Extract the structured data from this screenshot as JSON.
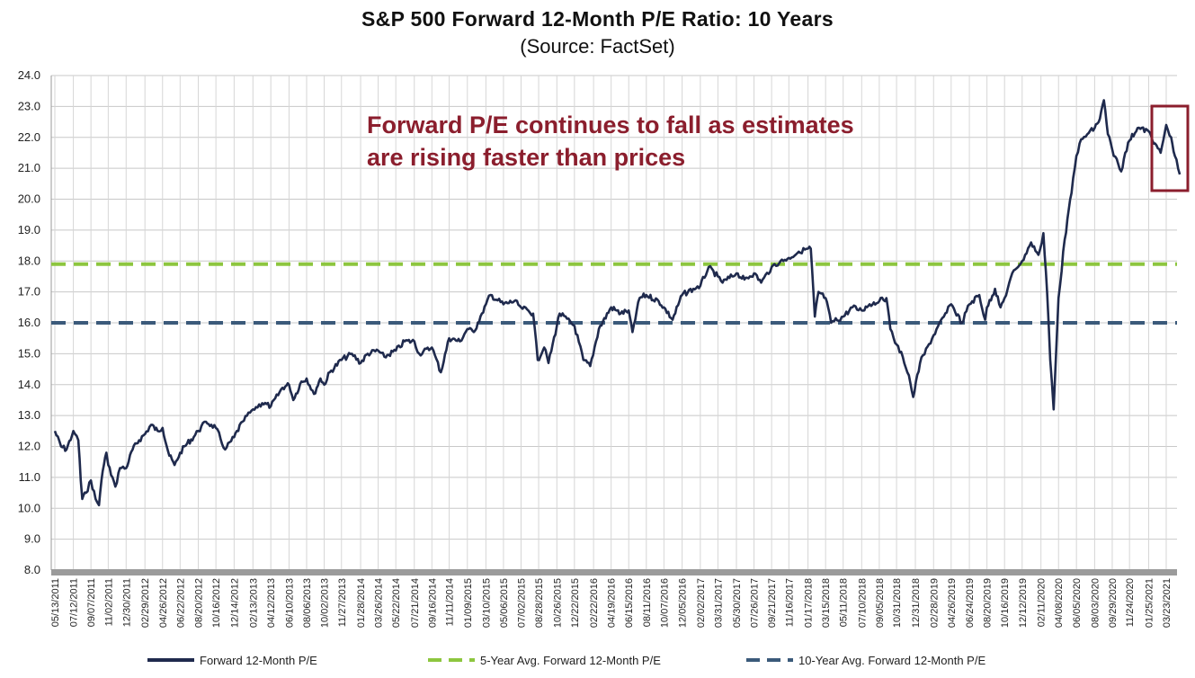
{
  "chart_data": {
    "type": "line",
    "title": "S&P 500 Forward 12-Month P/E Ratio: 10 Years",
    "subtitle": "(Source: FactSet)",
    "ylim": [
      8.0,
      24.0
    ],
    "yticks": [
      "8.0",
      "9.0",
      "10.0",
      "11.0",
      "12.0",
      "13.0",
      "14.0",
      "15.0",
      "16.0",
      "17.0",
      "18.0",
      "19.0",
      "20.0",
      "21.0",
      "22.0",
      "23.0",
      "24.0"
    ],
    "xtick_labels": [
      "05/13/2011",
      "07/12/2011",
      "09/07/2011",
      "11/02/2011",
      "12/30/2011",
      "02/29/2012",
      "04/26/2012",
      "06/22/2012",
      "08/20/2012",
      "10/16/2012",
      "12/14/2012",
      "02/13/2013",
      "04/12/2013",
      "06/10/2013",
      "08/06/2013",
      "10/02/2013",
      "11/27/2013",
      "01/28/2014",
      "03/26/2014",
      "05/22/2014",
      "07/21/2014",
      "09/16/2014",
      "11/11/2014",
      "01/09/2015",
      "03/10/2015",
      "05/06/2015",
      "07/02/2015",
      "08/28/2015",
      "10/26/2015",
      "12/22/2015",
      "02/22/2016",
      "04/19/2016",
      "06/15/2016",
      "08/11/2016",
      "10/07/2016",
      "12/05/2016",
      "02/02/2017",
      "03/31/2017",
      "05/30/2017",
      "07/26/2017",
      "09/21/2017",
      "11/16/2017",
      "01/17/2018",
      "03/15/2018",
      "05/11/2018",
      "07/10/2018",
      "09/05/2018",
      "10/31/2018",
      "12/31/2018",
      "02/28/2019",
      "04/26/2019",
      "06/24/2019",
      "08/20/2019",
      "10/16/2019",
      "12/12/2019",
      "02/11/2020",
      "04/08/2020",
      "06/05/2020",
      "08/03/2020",
      "09/29/2020",
      "11/24/2020",
      "01/25/2021",
      "03/23/2021"
    ],
    "series": [
      {
        "name": "Forward 12-Month P/E",
        "color": "#1f2a4d",
        "style": "solid",
        "points": [
          [
            "05/13/2011",
            12.5
          ],
          [
            "06/02/2011",
            12.0
          ],
          [
            "06/20/2011",
            11.9
          ],
          [
            "07/12/2011",
            12.5
          ],
          [
            "07/28/2011",
            12.2
          ],
          [
            "08/05/2011",
            10.9
          ],
          [
            "08/10/2011",
            10.3
          ],
          [
            "08/22/2011",
            10.5
          ],
          [
            "09/07/2011",
            10.9
          ],
          [
            "09/22/2011",
            10.3
          ],
          [
            "10/03/2011",
            10.1
          ],
          [
            "10/15/2011",
            11.2
          ],
          [
            "10/27/2011",
            11.8
          ],
          [
            "11/02/2011",
            11.4
          ],
          [
            "11/25/2011",
            10.7
          ],
          [
            "12/10/2011",
            11.3
          ],
          [
            "12/30/2011",
            11.3
          ],
          [
            "01/20/2012",
            11.9
          ],
          [
            "02/10/2012",
            12.2
          ],
          [
            "02/29/2012",
            12.4
          ],
          [
            "03/20/2012",
            12.7
          ],
          [
            "04/10/2012",
            12.5
          ],
          [
            "04/26/2012",
            12.6
          ],
          [
            "05/18/2012",
            11.7
          ],
          [
            "06/04/2012",
            11.4
          ],
          [
            "06/22/2012",
            11.8
          ],
          [
            "07/15/2012",
            12.1
          ],
          [
            "08/05/2012",
            12.3
          ],
          [
            "08/20/2012",
            12.5
          ],
          [
            "09/14/2012",
            12.8
          ],
          [
            "10/01/2012",
            12.7
          ],
          [
            "10/16/2012",
            12.6
          ],
          [
            "11/15/2012",
            11.9
          ],
          [
            "12/14/2012",
            12.3
          ],
          [
            "01/10/2013",
            12.8
          ],
          [
            "02/13/2013",
            13.2
          ],
          [
            "03/15/2013",
            13.4
          ],
          [
            "04/12/2013",
            13.3
          ],
          [
            "05/20/2013",
            13.9
          ],
          [
            "06/10/2013",
            14.0
          ],
          [
            "06/24/2013",
            13.5
          ],
          [
            "07/20/2013",
            14.1
          ],
          [
            "08/06/2013",
            14.2
          ],
          [
            "08/30/2013",
            13.7
          ],
          [
            "09/20/2013",
            14.2
          ],
          [
            "10/02/2013",
            14.0
          ],
          [
            "10/20/2013",
            14.4
          ],
          [
            "11/27/2013",
            14.8
          ],
          [
            "12/31/2013",
            15.0
          ],
          [
            "01/28/2014",
            14.7
          ],
          [
            "02/20/2014",
            15.0
          ],
          [
            "03/26/2014",
            15.1
          ],
          [
            "04/15/2014",
            14.9
          ],
          [
            "05/22/2014",
            15.1
          ],
          [
            "06/20/2014",
            15.4
          ],
          [
            "07/21/2014",
            15.4
          ],
          [
            "08/06/2014",
            15.0
          ],
          [
            "09/16/2014",
            15.2
          ],
          [
            "10/15/2014",
            14.4
          ],
          [
            "11/11/2014",
            15.5
          ],
          [
            "12/16/2014",
            15.4
          ],
          [
            "01/09/2015",
            15.8
          ],
          [
            "01/30/2015",
            15.7
          ],
          [
            "02/25/2015",
            16.3
          ],
          [
            "03/10/2015",
            16.6
          ],
          [
            "03/25/2015",
            16.9
          ],
          [
            "05/06/2015",
            16.6
          ],
          [
            "06/10/2015",
            16.7
          ],
          [
            "07/02/2015",
            16.5
          ],
          [
            "08/10/2015",
            16.3
          ],
          [
            "08/25/2015",
            14.8
          ],
          [
            "09/15/2015",
            15.2
          ],
          [
            "09/29/2015",
            14.7
          ],
          [
            "10/26/2015",
            15.9
          ],
          [
            "11/04/2015",
            16.3
          ],
          [
            "12/22/2015",
            15.9
          ],
          [
            "01/20/2016",
            14.8
          ],
          [
            "02/11/2016",
            14.6
          ],
          [
            "03/10/2016",
            15.8
          ],
          [
            "04/19/2016",
            16.5
          ],
          [
            "05/20/2016",
            16.3
          ],
          [
            "06/15/2016",
            16.4
          ],
          [
            "06/27/2016",
            15.7
          ],
          [
            "07/20/2016",
            16.8
          ],
          [
            "08/11/2016",
            16.9
          ],
          [
            "09/20/2016",
            16.7
          ],
          [
            "10/07/2016",
            16.5
          ],
          [
            "11/04/2016",
            16.1
          ],
          [
            "12/05/2016",
            16.9
          ],
          [
            "01/10/2017",
            17.1
          ],
          [
            "02/02/2017",
            17.2
          ],
          [
            "03/01/2017",
            17.8
          ],
          [
            "03/31/2017",
            17.5
          ],
          [
            "04/15/2017",
            17.3
          ],
          [
            "05/30/2017",
            17.6
          ],
          [
            "06/25/2017",
            17.4
          ],
          [
            "07/26/2017",
            17.6
          ],
          [
            "08/18/2017",
            17.3
          ],
          [
            "09/21/2017",
            17.8
          ],
          [
            "10/20/2017",
            18.0
          ],
          [
            "11/16/2017",
            18.1
          ],
          [
            "12/18/2017",
            18.3
          ],
          [
            "01/17/2018",
            18.4
          ],
          [
            "01/26/2018",
            18.4
          ],
          [
            "02/08/2018",
            16.2
          ],
          [
            "02/20/2018",
            17.0
          ],
          [
            "03/15/2018",
            16.8
          ],
          [
            "04/02/2018",
            16.0
          ],
          [
            "05/11/2018",
            16.2
          ],
          [
            "06/10/2018",
            16.5
          ],
          [
            "07/10/2018",
            16.4
          ],
          [
            "08/05/2018",
            16.6
          ],
          [
            "09/05/2018",
            16.7
          ],
          [
            "09/28/2018",
            16.8
          ],
          [
            "10/11/2018",
            15.8
          ],
          [
            "10/31/2018",
            15.3
          ],
          [
            "11/20/2018",
            14.9
          ],
          [
            "12/10/2018",
            14.3
          ],
          [
            "12/24/2018",
            13.6
          ],
          [
            "01/15/2019",
            14.7
          ],
          [
            "02/28/2019",
            15.6
          ],
          [
            "04/26/2019",
            16.6
          ],
          [
            "05/31/2019",
            16.0
          ],
          [
            "06/24/2019",
            16.6
          ],
          [
            "07/26/2019",
            16.9
          ],
          [
            "08/14/2019",
            16.1
          ],
          [
            "08/20/2019",
            16.5
          ],
          [
            "09/15/2019",
            17.1
          ],
          [
            "10/03/2019",
            16.5
          ],
          [
            "10/16/2019",
            16.8
          ],
          [
            "11/15/2019",
            17.7
          ],
          [
            "12/12/2019",
            18.0
          ],
          [
            "01/10/2020",
            18.6
          ],
          [
            "02/03/2020",
            18.2
          ],
          [
            "02/19/2020",
            18.9
          ],
          [
            "03/02/2020",
            17.0
          ],
          [
            "03/12/2020",
            14.8
          ],
          [
            "03/23/2020",
            13.2
          ],
          [
            "04/08/2020",
            16.8
          ],
          [
            "04/28/2020",
            18.7
          ],
          [
            "05/20/2020",
            20.2
          ],
          [
            "06/05/2020",
            21.4
          ],
          [
            "06/15/2020",
            21.8
          ],
          [
            "07/10/2020",
            22.1
          ],
          [
            "08/03/2020",
            22.3
          ],
          [
            "08/20/2020",
            22.6
          ],
          [
            "09/02/2020",
            23.2
          ],
          [
            "09/15/2020",
            22.1
          ],
          [
            "09/29/2020",
            21.6
          ],
          [
            "10/28/2020",
            20.9
          ],
          [
            "11/10/2020",
            21.5
          ],
          [
            "11/24/2020",
            21.9
          ],
          [
            "12/20/2020",
            22.3
          ],
          [
            "01/25/2021",
            22.2
          ],
          [
            "02/15/2021",
            21.8
          ],
          [
            "03/05/2021",
            21.5
          ],
          [
            "03/23/2021",
            22.4
          ],
          [
            "04/08/2021",
            22.0
          ],
          [
            "04/20/2021",
            21.4
          ],
          [
            "05/06/2021",
            20.8
          ]
        ]
      },
      {
        "name": "5-Year Avg. Forward 12-Month P/E",
        "color": "#8dc63f",
        "style": "dashed",
        "value": 17.9
      },
      {
        "name": "10-Year Avg. Forward 12-Month P/E",
        "color": "#3b5a7a",
        "style": "dashed",
        "value": 16.0
      }
    ],
    "annotation": {
      "lines": [
        "Forward P/E continues to fall as estimates",
        "are rising faster than prices"
      ],
      "color": "#8b1e2d"
    },
    "highlight_box_color": "#8b1e2d",
    "grid": true,
    "legend_position": "bottom"
  }
}
